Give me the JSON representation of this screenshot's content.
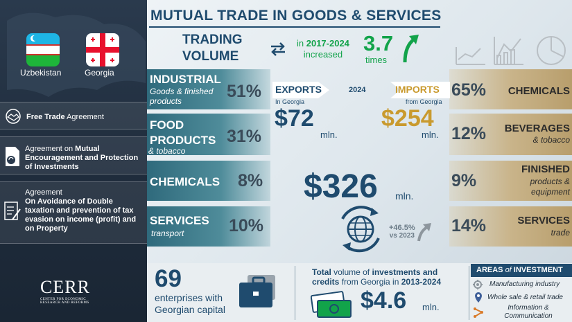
{
  "title": "MUTUAL TRADE IN GOODS & SERVICES",
  "left": {
    "flags": [
      {
        "label": "Uzbekistan"
      },
      {
        "label": "Georgia"
      }
    ],
    "agreements": [
      {
        "bold": "Free Trade",
        "text": " Agreement"
      },
      {
        "pre": "Agreement on ",
        "bold": "Mutual Encouragement and Protection of Investments"
      },
      {
        "pre": "Agreement",
        "bold": "On Avoidance of Double taxation and prevention of tax evasion on income (profit) and on Property"
      }
    ],
    "logo": {
      "name": "CERR",
      "sub1": "CENTER FOR ECONOMIC",
      "sub2": "RESEARCH AND REFORMS"
    }
  },
  "trading": {
    "label1": "TRADING",
    "label2": "VOLUME",
    "in_years_pre": "in ",
    "years": "2017-2024",
    "increased": "increased",
    "multiplier": "3.7",
    "times": "times"
  },
  "exports_col": [
    {
      "title": "INDUSTRIAL",
      "sub": "Goods & finished products",
      "pct": "51%"
    },
    {
      "title": "FOOD PRODUCTS",
      "sub": "& tobacco",
      "pct": "31%"
    },
    {
      "title": "CHEMICALS",
      "sub": "",
      "pct": "8%"
    },
    {
      "title": "SERVICES",
      "sub": "transport",
      "pct": "10%"
    }
  ],
  "imports_col": [
    {
      "title": "CHEMICALS",
      "sub": "",
      "pct": "65%"
    },
    {
      "title": "BEVERAGES",
      "sub": "& tobacco",
      "pct": "12%"
    },
    {
      "title": "FINISHED",
      "sub": "products & equipment",
      "pct": "9%"
    },
    {
      "title": "SERVICES",
      "sub": "trade",
      "pct": "14%"
    }
  ],
  "center": {
    "exports_label": "EXPORTS",
    "exports_sub": "In Georgia",
    "exports_value": "$72",
    "exports_unit": "mln.",
    "year": "2024",
    "imports_label": "IMPORTS",
    "imports_sub": "from Georgia",
    "imports_value": "$254",
    "imports_unit": "mln.",
    "total_value": "$326",
    "total_unit": "mln.",
    "growth": "+46.5%",
    "growth_vs": "vs 2023"
  },
  "bottom": {
    "enterprises_value": "69",
    "enterprises_text1": "enterprises with",
    "enterprises_text2": "Georgian capital",
    "inv_title_b1": "Total",
    "inv_title_1": " volume of ",
    "inv_title_b2": "investments and credits",
    "inv_title_2": " from Georgia in ",
    "inv_title_b3": "2013-2024",
    "inv_value": "$4.6",
    "inv_unit": "mln.",
    "areas_title_1": "AREAS ",
    "areas_title_of": "of",
    "areas_title_2": " INVESTMENT",
    "areas": [
      "Manufacturing industry",
      "Whole sale & retail trade",
      "Information & Communication"
    ]
  },
  "colors": {
    "navy": "#1f4b6e",
    "green": "#12a34a",
    "gold": "#c99a2e",
    "teal": "#2f6a7c"
  }
}
